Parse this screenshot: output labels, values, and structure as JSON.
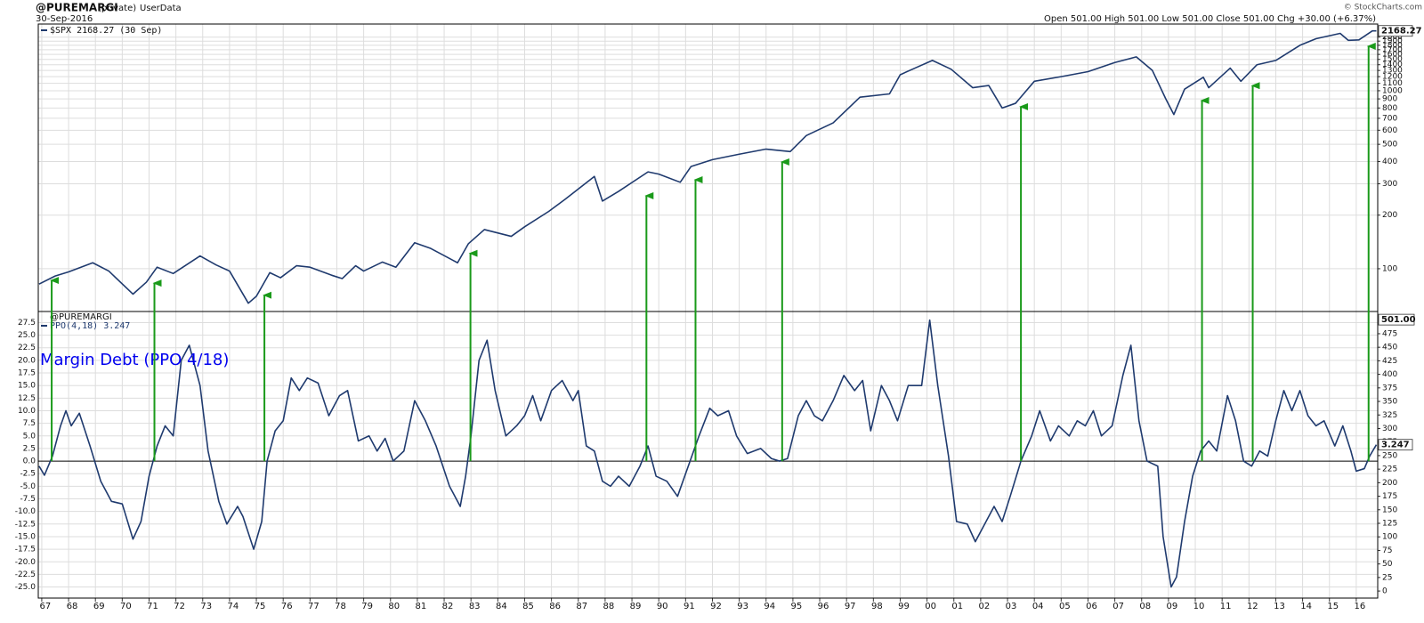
{
  "header": {
    "symbol": "@PUREMARGI",
    "access": "(private)",
    "source": "UserData",
    "date": "30-Sep-2016",
    "quote": "Open 501.00 High 501.00 Low 501.00 Close 501.00 Chg +30.00 (+6.37%)",
    "credit": "© StockCharts.com"
  },
  "chart_data": [
    {
      "type": "line",
      "log": true,
      "grid": true,
      "color": "#1f3a6e",
      "legend": "$SPX 2168.27 (30 Sep)",
      "last_value_label": "2168.27",
      "xlim": [
        1966.87,
        2016.8
      ],
      "ylim": [
        57.5,
        2370
      ],
      "yticks": [
        100,
        200,
        300,
        400,
        500,
        600,
        700,
        800,
        900,
        1000,
        1100,
        1200,
        1300,
        1400,
        1500,
        1600,
        1700,
        1800,
        1900,
        2000
      ],
      "x": [
        1966.9,
        1967.5,
        1968.0,
        1968.9,
        1969.5,
        1970.4,
        1970.9,
        1971.3,
        1971.9,
        1972.9,
        1973.5,
        1974.0,
        1974.7,
        1975.0,
        1975.5,
        1975.9,
        1976.5,
        1977.0,
        1977.8,
        1978.2,
        1978.7,
        1979.0,
        1979.7,
        1980.2,
        1980.9,
        1981.5,
        1982.5,
        1982.9,
        1983.5,
        1984.5,
        1985.0,
        1985.9,
        1986.5,
        1987.6,
        1987.9,
        1988.5,
        1989.6,
        1990.0,
        1990.8,
        1991.2,
        1992.0,
        1993.0,
        1994.0,
        1994.9,
        1995.5,
        1996.5,
        1997.5,
        1998.6,
        1999.0,
        1999.5,
        2000.2,
        2000.9,
        2001.7,
        2002.3,
        2002.8,
        2003.3,
        2004.0,
        2005.0,
        2006.0,
        2007.0,
        2007.8,
        2008.4,
        2008.9,
        2009.2,
        2009.6,
        2010.3,
        2010.5,
        2011.3,
        2011.7,
        2012.3,
        2013.0,
        2013.9,
        2014.5,
        2015.4,
        2015.7,
        2016.1,
        2016.6,
        2016.75
      ],
      "values": [
        82,
        91,
        96,
        108,
        97,
        72,
        84,
        102,
        94,
        118,
        105,
        97,
        64,
        70,
        95,
        89,
        104,
        102,
        92,
        88,
        104,
        97,
        109,
        102,
        140,
        130,
        108,
        138,
        166,
        152,
        172,
        210,
        245,
        330,
        240,
        272,
        350,
        340,
        306,
        375,
        410,
        440,
        470,
        455,
        560,
        660,
        920,
        960,
        1230,
        1330,
        1480,
        1320,
        1040,
        1070,
        800,
        850,
        1130,
        1200,
        1280,
        1440,
        1550,
        1300,
        900,
        735,
        1020,
        1190,
        1040,
        1340,
        1130,
        1400,
        1480,
        1800,
        1960,
        2100,
        1920,
        1930,
        2170,
        2168.27
      ],
      "signals": {
        "color": "#1a9a1a",
        "x": [
          1967.37,
          1971.2,
          1975.3,
          1982.98,
          1989.54,
          1991.37,
          1994.6,
          2003.5,
          2010.25,
          2012.14,
          2016.46
        ],
        "values": [
          86,
          83,
          71,
          122,
          257,
          316,
          398,
          813,
          881,
          1068,
          1778
        ]
      }
    },
    {
      "type": "line",
      "log": false,
      "grid": true,
      "color": "#1f3a6e",
      "panel_title": "@PUREMARGI",
      "legend": "PPO(4,18) 3.247",
      "last_value_label": "3.247",
      "annotation": "Margin Debt  (PPO 4/18)",
      "annotation_color": "#0000ee",
      "xlim": [
        1966.87,
        2016.8
      ],
      "ylim": [
        -27.2,
        29.7
      ],
      "y2lim": [
        -13,
        516
      ],
      "y2_marker": {
        "value": 501,
        "label": "501.00"
      },
      "xticks": [
        {
          "value": 1967,
          "label": "67"
        },
        {
          "value": 1968,
          "label": "68"
        },
        {
          "value": 1969,
          "label": "69"
        },
        {
          "value": 1970,
          "label": "70"
        },
        {
          "value": 1971,
          "label": "71"
        },
        {
          "value": 1972,
          "label": "72"
        },
        {
          "value": 1973,
          "label": "73"
        },
        {
          "value": 1974,
          "label": "74"
        },
        {
          "value": 1975,
          "label": "75"
        },
        {
          "value": 1976,
          "label": "76"
        },
        {
          "value": 1977,
          "label": "77"
        },
        {
          "value": 1978,
          "label": "78"
        },
        {
          "value": 1979,
          "label": "79"
        },
        {
          "value": 1980,
          "label": "80"
        },
        {
          "value": 1981,
          "label": "81"
        },
        {
          "value": 1982,
          "label": "82"
        },
        {
          "value": 1983,
          "label": "83"
        },
        {
          "value": 1984,
          "label": "84"
        },
        {
          "value": 1985,
          "label": "85"
        },
        {
          "value": 1986,
          "label": "86"
        },
        {
          "value": 1987,
          "label": "87"
        },
        {
          "value": 1988,
          "label": "88"
        },
        {
          "value": 1989,
          "label": "89"
        },
        {
          "value": 1990,
          "label": "90"
        },
        {
          "value": 1991,
          "label": "91"
        },
        {
          "value": 1992,
          "label": "92"
        },
        {
          "value": 1993,
          "label": "93"
        },
        {
          "value": 1994,
          "label": "94"
        },
        {
          "value": 1995,
          "label": "95"
        },
        {
          "value": 1996,
          "label": "96"
        },
        {
          "value": 1997,
          "label": "97"
        },
        {
          "value": 1998,
          "label": "98"
        },
        {
          "value": 1999,
          "label": "99"
        },
        {
          "value": 2000,
          "label": "00"
        },
        {
          "value": 2001,
          "label": "01"
        },
        {
          "value": 2002,
          "label": "02"
        },
        {
          "value": 2003,
          "label": "03"
        },
        {
          "value": 2004,
          "label": "04"
        },
        {
          "value": 2005,
          "label": "05"
        },
        {
          "value": 2006,
          "label": "06"
        },
        {
          "value": 2007,
          "label": "07"
        },
        {
          "value": 2008,
          "label": "08"
        },
        {
          "value": 2009,
          "label": "09"
        },
        {
          "value": 2010,
          "label": "10"
        },
        {
          "value": 2011,
          "label": "11"
        },
        {
          "value": 2012,
          "label": "12"
        },
        {
          "value": 2013,
          "label": "13"
        },
        {
          "value": 2014,
          "label": "14"
        },
        {
          "value": 2015,
          "label": "15"
        },
        {
          "value": 2016,
          "label": "16"
        }
      ],
      "yticks": [
        {
          "value": -25,
          "label": "-25.0"
        },
        {
          "value": -22.5,
          "label": "-22.5"
        },
        {
          "value": -20,
          "label": "-20.0"
        },
        {
          "value": -17.5,
          "label": "-17.5"
        },
        {
          "value": -15,
          "label": "-15.0"
        },
        {
          "value": -12.5,
          "label": "-12.5"
        },
        {
          "value": -10,
          "label": "-10.0"
        },
        {
          "value": -7.5,
          "label": "-7.5"
        },
        {
          "value": -5,
          "label": "-5.0"
        },
        {
          "value": -2.5,
          "label": "-2.5"
        },
        {
          "value": 0,
          "label": "0.0"
        },
        {
          "value": 2.5,
          "label": "2.5"
        },
        {
          "value": 5,
          "label": "5.0"
        },
        {
          "value": 7.5,
          "label": "7.5"
        },
        {
          "value": 10,
          "label": "10.0"
        },
        {
          "value": 12.5,
          "label": "12.5"
        },
        {
          "value": 15,
          "label": "15.0"
        },
        {
          "value": 17.5,
          "label": "17.5"
        },
        {
          "value": 20,
          "label": "20.0"
        },
        {
          "value": 22.5,
          "label": "22.5"
        },
        {
          "value": 25,
          "label": "25.0"
        },
        {
          "value": 27.5,
          "label": "27.5"
        }
      ],
      "y2ticks": [
        0,
        25,
        50,
        75,
        100,
        125,
        150,
        175,
        200,
        225,
        250,
        275,
        300,
        325,
        350,
        375,
        400,
        425,
        450,
        475
      ],
      "x": [
        1966.9,
        1967.1,
        1967.4,
        1967.7,
        1967.9,
        1968.1,
        1968.4,
        1968.8,
        1969.2,
        1969.6,
        1970.0,
        1970.4,
        1970.7,
        1971.0,
        1971.3,
        1971.6,
        1971.9,
        1972.2,
        1972.5,
        1972.9,
        1973.2,
        1973.6,
        1973.9,
        1974.3,
        1974.5,
        1974.9,
        1975.2,
        1975.4,
        1975.7,
        1976.0,
        1976.3,
        1976.6,
        1976.9,
        1977.3,
        1977.7,
        1978.1,
        1978.4,
        1978.8,
        1979.2,
        1979.5,
        1979.8,
        1980.1,
        1980.5,
        1980.9,
        1981.3,
        1981.7,
        1982.2,
        1982.6,
        1982.8,
        1983.0,
        1983.3,
        1983.6,
        1983.9,
        1984.3,
        1984.7,
        1985.0,
        1985.3,
        1985.6,
        1986.0,
        1986.4,
        1986.8,
        1987.0,
        1987.3,
        1987.6,
        1987.9,
        1988.2,
        1988.5,
        1988.9,
        1989.3,
        1989.6,
        1989.9,
        1990.3,
        1990.7,
        1991.1,
        1991.5,
        1991.9,
        1992.2,
        1992.6,
        1992.9,
        1993.3,
        1993.8,
        1994.2,
        1994.5,
        1994.8,
        1995.2,
        1995.5,
        1995.8,
        1996.1,
        1996.5,
        1996.9,
        1997.3,
        1997.6,
        1997.9,
        1998.3,
        1998.6,
        1998.9,
        1999.3,
        1999.8,
        2000.1,
        2000.4,
        2000.8,
        2001.1,
        2001.5,
        2001.8,
        2002.2,
        2002.5,
        2002.8,
        2003.1,
        2003.5,
        2003.9,
        2004.2,
        2004.6,
        2004.9,
        2005.3,
        2005.6,
        2005.9,
        2006.2,
        2006.5,
        2006.9,
        2007.3,
        2007.6,
        2007.9,
        2008.2,
        2008.6,
        2008.8,
        2009.1,
        2009.3,
        2009.6,
        2009.9,
        2010.2,
        2010.5,
        2010.8,
        2011.2,
        2011.5,
        2011.8,
        2012.1,
        2012.4,
        2012.7,
        2013.0,
        2013.3,
        2013.6,
        2013.9,
        2014.2,
        2014.5,
        2014.8,
        2015.2,
        2015.5,
        2015.8,
        2016.0,
        2016.3,
        2016.5,
        2016.75
      ],
      "values": [
        -1,
        -2.8,
        1,
        7,
        10,
        7,
        9.5,
        3,
        -4,
        -8,
        -8.5,
        -15.5,
        -12,
        -3,
        3,
        7,
        5,
        20,
        23,
        15,
        2,
        -8,
        -12.5,
        -9,
        -11,
        -17.5,
        -12,
        0,
        6,
        8,
        16.5,
        14,
        16.5,
        15.5,
        9,
        13,
        14,
        4,
        5,
        2,
        4.5,
        0,
        2,
        12,
        8,
        3,
        -5,
        -9,
        -3,
        5,
        20,
        24,
        14,
        5,
        7,
        9,
        13,
        8,
        14,
        16,
        12,
        14,
        3,
        2,
        -4,
        -5,
        -3,
        -5,
        -1,
        3,
        -3,
        -4,
        -7,
        -1,
        5,
        10.5,
        9,
        10,
        5,
        1.5,
        2.5,
        0.5,
        0,
        0.5,
        9,
        12,
        9,
        8,
        12,
        17,
        14,
        16,
        6,
        15,
        12,
        8,
        15,
        15,
        28,
        15,
        1,
        -12,
        -12.5,
        -16,
        -12,
        -9,
        -12,
        -7,
        0,
        5,
        10,
        4,
        7,
        5,
        8,
        7,
        10,
        5,
        7,
        17,
        23,
        8,
        0,
        -1,
        -15,
        -25,
        -23,
        -12,
        -3,
        2,
        4,
        2,
        13,
        8,
        0,
        -1,
        2,
        1,
        8,
        14,
        10,
        14,
        9,
        7,
        8,
        3,
        7,
        2,
        -2,
        -1.5,
        1,
        3.247
      ]
    }
  ]
}
